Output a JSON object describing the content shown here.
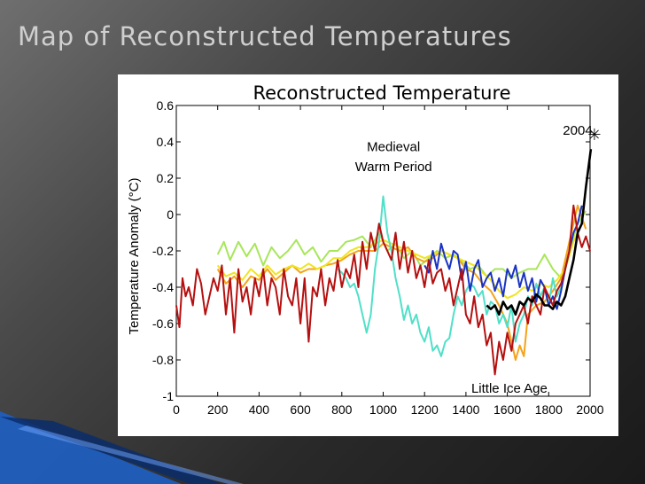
{
  "slide": {
    "title": "Map of Reconstructed Temperatures",
    "background": "#3a3a3a",
    "accent_color": "#1e5fc4"
  },
  "chart_data": {
    "type": "line",
    "title": "Reconstructed Temperature",
    "xlabel": "",
    "ylabel": "Temperature Anomaly (°C)",
    "xlim": [
      0,
      2000
    ],
    "ylim": [
      -1,
      0.6
    ],
    "xticks": [
      0,
      200,
      400,
      600,
      800,
      1000,
      1200,
      1400,
      1600,
      1800,
      2000
    ],
    "yticks": [
      0.6,
      0.4,
      0.2,
      0,
      -0.2,
      -0.4,
      -0.6,
      -0.8,
      -1
    ],
    "grid": false,
    "annotations": [
      {
        "text": "Medieval",
        "x": 1050,
        "y": 0.35
      },
      {
        "text": "Warm Period",
        "x": 1050,
        "y": 0.24
      },
      {
        "text": "Little Ice Age",
        "x": 1610,
        "y": -0.98
      },
      {
        "text": "2004",
        "x": 1940,
        "y": 0.44
      }
    ],
    "marker_2004": {
      "x": 2004,
      "y": 0.44,
      "symbol": "✳"
    },
    "series": [
      {
        "name": "green",
        "color": "#a8e65a",
        "x": [
          200,
          230,
          260,
          300,
          340,
          380,
          420,
          460,
          500,
          540,
          580,
          620,
          660,
          700,
          740,
          780,
          820,
          860,
          900,
          940,
          980,
          1020,
          1060,
          1100,
          1140,
          1180,
          1220,
          1260,
          1300,
          1340,
          1380,
          1420,
          1460,
          1500,
          1540,
          1580,
          1620,
          1660,
          1700,
          1740,
          1780,
          1820,
          1860,
          1900,
          1940,
          1980
        ],
        "y": [
          -0.22,
          -0.15,
          -0.25,
          -0.15,
          -0.23,
          -0.16,
          -0.28,
          -0.18,
          -0.24,
          -0.2,
          -0.14,
          -0.22,
          -0.18,
          -0.26,
          -0.2,
          -0.2,
          -0.15,
          -0.14,
          -0.12,
          -0.18,
          -0.1,
          -0.2,
          -0.16,
          -0.24,
          -0.2,
          -0.28,
          -0.24,
          -0.2,
          -0.24,
          -0.22,
          -0.26,
          -0.3,
          -0.28,
          -0.34,
          -0.3,
          -0.3,
          -0.35,
          -0.32,
          -0.3,
          -0.3,
          -0.22,
          -0.3,
          -0.35,
          -0.2,
          -0.05,
          0.02
        ]
      },
      {
        "name": "orange",
        "color": "#f4a31a",
        "x": [
          200,
          240,
          280,
          320,
          360,
          400,
          440,
          480,
          520,
          560,
          600,
          640,
          680,
          720,
          760,
          800,
          840,
          880,
          920,
          960,
          1000,
          1040,
          1080,
          1120,
          1160,
          1200,
          1240,
          1280,
          1320,
          1360,
          1400,
          1440,
          1480,
          1520,
          1560,
          1600,
          1620,
          1640,
          1660,
          1680,
          1700,
          1740,
          1780,
          1820,
          1860,
          1900,
          1940,
          1980
        ],
        "y": [
          -0.3,
          -0.38,
          -0.34,
          -0.4,
          -0.34,
          -0.36,
          -0.3,
          -0.36,
          -0.32,
          -0.28,
          -0.32,
          -0.3,
          -0.3,
          -0.28,
          -0.27,
          -0.25,
          -0.22,
          -0.2,
          -0.2,
          -0.2,
          -0.16,
          -0.18,
          -0.2,
          -0.18,
          -0.24,
          -0.26,
          -0.24,
          -0.2,
          -0.22,
          -0.24,
          -0.3,
          -0.32,
          -0.38,
          -0.42,
          -0.5,
          -0.6,
          -0.7,
          -0.8,
          -0.72,
          -0.78,
          -0.55,
          -0.5,
          -0.48,
          -0.42,
          -0.35,
          -0.15,
          0.05,
          -0.08
        ]
      },
      {
        "name": "yellow",
        "color": "#f0e51f",
        "x": [
          200,
          240,
          280,
          320,
          360,
          400,
          440,
          480,
          520,
          560,
          600,
          640,
          680,
          720,
          760,
          800,
          840,
          880,
          920,
          960,
          1000,
          1040,
          1080,
          1120,
          1160,
          1200,
          1240,
          1280,
          1320,
          1360,
          1400,
          1440,
          1480,
          1520,
          1560,
          1600,
          1640,
          1680,
          1720,
          1760,
          1800,
          1840,
          1880,
          1920,
          1960
        ],
        "y": [
          -0.28,
          -0.34,
          -0.32,
          -0.36,
          -0.3,
          -0.34,
          -0.28,
          -0.33,
          -0.3,
          -0.28,
          -0.3,
          -0.27,
          -0.3,
          -0.28,
          -0.24,
          -0.24,
          -0.2,
          -0.18,
          -0.18,
          -0.16,
          -0.14,
          -0.16,
          -0.18,
          -0.2,
          -0.22,
          -0.24,
          -0.22,
          -0.2,
          -0.22,
          -0.24,
          -0.26,
          -0.28,
          -0.32,
          -0.36,
          -0.42,
          -0.46,
          -0.44,
          -0.4,
          -0.42,
          -0.38,
          -0.4,
          -0.36,
          -0.3,
          -0.15,
          -0.05
        ]
      },
      {
        "name": "cyan",
        "color": "#4fe0c8",
        "x": [
          780,
          800,
          820,
          840,
          860,
          880,
          900,
          920,
          940,
          960,
          980,
          1000,
          1020,
          1040,
          1060,
          1080,
          1100,
          1120,
          1140,
          1160,
          1180,
          1200,
          1220,
          1240,
          1260,
          1280,
          1300,
          1320,
          1340,
          1360,
          1380,
          1400,
          1420,
          1440,
          1460,
          1480,
          1500,
          1520,
          1540,
          1560,
          1580,
          1600,
          1620,
          1640,
          1660,
          1680,
          1700,
          1720,
          1740,
          1760,
          1780,
          1800,
          1820,
          1840,
          1860,
          1880,
          1900
        ],
        "y": [
          -0.3,
          -0.32,
          -0.35,
          -0.4,
          -0.38,
          -0.45,
          -0.55,
          -0.65,
          -0.55,
          -0.3,
          -0.15,
          0.1,
          -0.1,
          -0.2,
          -0.35,
          -0.45,
          -0.58,
          -0.5,
          -0.6,
          -0.55,
          -0.65,
          -0.7,
          -0.62,
          -0.75,
          -0.72,
          -0.78,
          -0.7,
          -0.68,
          -0.55,
          -0.45,
          -0.5,
          -0.42,
          -0.38,
          -0.4,
          -0.45,
          -0.42,
          -0.55,
          -0.48,
          -0.5,
          -0.6,
          -0.55,
          -0.62,
          -0.5,
          -0.7,
          -0.6,
          -0.55,
          -0.45,
          -0.5,
          -0.38,
          -0.45,
          -0.4,
          -0.5,
          -0.35,
          -0.45,
          -0.4,
          -0.3,
          -0.2
        ]
      },
      {
        "name": "blue",
        "color": "#1a33c4",
        "x": [
          1200,
          1220,
          1240,
          1260,
          1280,
          1300,
          1320,
          1340,
          1360,
          1380,
          1400,
          1420,
          1440,
          1460,
          1480,
          1500,
          1520,
          1540,
          1560,
          1580,
          1600,
          1620,
          1640,
          1660,
          1680,
          1700,
          1720,
          1740,
          1760,
          1780,
          1800,
          1820,
          1840,
          1860,
          1880,
          1900,
          1920,
          1940,
          1960
        ],
        "y": [
          -0.28,
          -0.32,
          -0.2,
          -0.3,
          -0.16,
          -0.24,
          -0.3,
          -0.2,
          -0.22,
          -0.36,
          -0.26,
          -0.42,
          -0.3,
          -0.25,
          -0.4,
          -0.35,
          -0.32,
          -0.42,
          -0.35,
          -0.45,
          -0.3,
          -0.35,
          -0.28,
          -0.4,
          -0.32,
          -0.42,
          -0.35,
          -0.48,
          -0.36,
          -0.4,
          -0.5,
          -0.45,
          -0.52,
          -0.42,
          -0.3,
          -0.2,
          -0.1,
          -0.05,
          0.05
        ]
      },
      {
        "name": "red",
        "color": "#b51010",
        "x": [
          0,
          15,
          30,
          45,
          60,
          80,
          100,
          120,
          140,
          160,
          180,
          200,
          220,
          240,
          260,
          280,
          300,
          320,
          340,
          360,
          380,
          400,
          420,
          440,
          460,
          480,
          500,
          520,
          540,
          560,
          580,
          600,
          620,
          640,
          660,
          680,
          700,
          720,
          740,
          760,
          780,
          800,
          820,
          840,
          860,
          880,
          900,
          920,
          940,
          960,
          980,
          1000,
          1020,
          1040,
          1060,
          1080,
          1100,
          1120,
          1140,
          1160,
          1180,
          1200,
          1220,
          1240,
          1260,
          1280,
          1300,
          1320,
          1340,
          1360,
          1380,
          1400,
          1420,
          1440,
          1460,
          1480,
          1500,
          1520,
          1540,
          1560,
          1580,
          1600,
          1620,
          1640,
          1660,
          1680,
          1700,
          1720,
          1740,
          1760,
          1780,
          1800,
          1820,
          1840,
          1860,
          1880,
          1900,
          1920,
          1940,
          1960,
          1980,
          2000
        ],
        "y": [
          -0.5,
          -0.62,
          -0.35,
          -0.45,
          -0.4,
          -0.5,
          -0.3,
          -0.38,
          -0.55,
          -0.45,
          -0.35,
          -0.42,
          -0.28,
          -0.55,
          -0.35,
          -0.65,
          -0.3,
          -0.48,
          -0.4,
          -0.55,
          -0.35,
          -0.45,
          -0.3,
          -0.5,
          -0.35,
          -0.4,
          -0.55,
          -0.3,
          -0.45,
          -0.5,
          -0.35,
          -0.6,
          -0.35,
          -0.7,
          -0.4,
          -0.45,
          -0.3,
          -0.5,
          -0.35,
          -0.42,
          -0.25,
          -0.4,
          -0.3,
          -0.35,
          -0.22,
          -0.4,
          -0.15,
          -0.3,
          -0.1,
          -0.2,
          -0.05,
          -0.15,
          -0.2,
          -0.25,
          -0.1,
          -0.3,
          -0.15,
          -0.32,
          -0.2,
          -0.35,
          -0.28,
          -0.4,
          -0.25,
          -0.38,
          -0.32,
          -0.3,
          -0.42,
          -0.35,
          -0.5,
          -0.4,
          -0.3,
          -0.55,
          -0.6,
          -0.45,
          -0.62,
          -0.55,
          -0.72,
          -0.65,
          -0.88,
          -0.7,
          -0.8,
          -0.65,
          -0.75,
          -0.6,
          -0.55,
          -0.5,
          -0.6,
          -0.45,
          -0.5,
          -0.55,
          -0.4,
          -0.45,
          -0.5,
          -0.42,
          -0.38,
          -0.3,
          -0.2,
          0.05,
          -0.1,
          -0.18,
          -0.12,
          -0.2
        ]
      },
      {
        "name": "black",
        "color": "#000000",
        "x": [
          1500,
          1520,
          1540,
          1560,
          1580,
          1600,
          1620,
          1640,
          1660,
          1680,
          1700,
          1720,
          1740,
          1760,
          1780,
          1800,
          1820,
          1840,
          1860,
          1880,
          1900,
          1920,
          1940,
          1960,
          1980,
          2004
        ],
        "y": [
          -0.5,
          -0.52,
          -0.5,
          -0.55,
          -0.48,
          -0.52,
          -0.5,
          -0.55,
          -0.48,
          -0.5,
          -0.46,
          -0.48,
          -0.44,
          -0.46,
          -0.5,
          -0.5,
          -0.52,
          -0.48,
          -0.5,
          -0.45,
          -0.35,
          -0.25,
          -0.1,
          -0.05,
          0.15,
          0.36
        ]
      }
    ]
  }
}
